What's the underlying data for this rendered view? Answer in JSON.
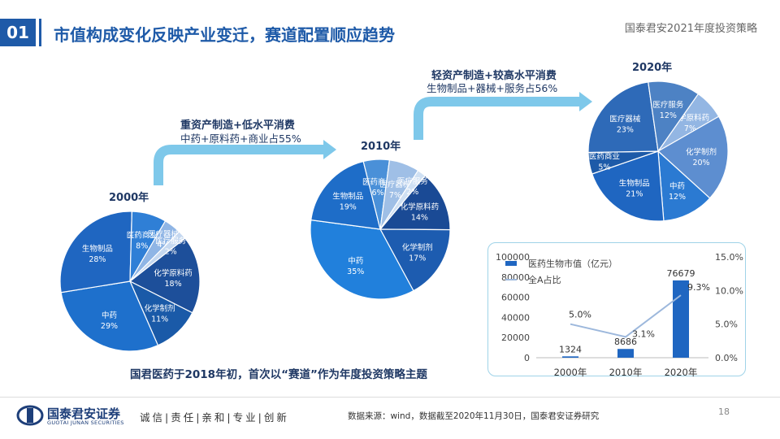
{
  "header": {
    "section_number": "01",
    "title": "市值构成变化反映产业变迁，赛道配置顺应趋势",
    "report_name": "国泰君安2021年度投资策略"
  },
  "annotations": {
    "a1_title": "重资产制造+低水平消费",
    "a1_sub": "中药+原料药+商业占55%",
    "a2_title": "轻资产制造+较高水平消费",
    "a2_sub": "生物制品+器械+服务占56%",
    "highlight": "国君医药于2018年初，首次以“赛道”作为年度投资策略主题"
  },
  "footer": {
    "company": "国泰君安证券",
    "company_en": "GUOTAI JUNAN SECURITIES",
    "values": "诚信|责任|亲和|专业|创新",
    "source": "数据来源：wind，数据截至2020年11月30日，国泰君安证券研究",
    "page": "18"
  },
  "colors": {
    "dark_blue": "#1e4f95",
    "mid_blue": "#1f66c1",
    "light_blue": "#2e85dc",
    "accent": "#1e5aa8"
  },
  "chart_data": [
    {
      "type": "pie",
      "title": "2000年",
      "slices": [
        {
          "name": "化学原料药",
          "value": 18
        },
        {
          "name": "化学制剂",
          "value": 11
        },
        {
          "name": "中药",
          "value": 29
        },
        {
          "name": "生物制品",
          "value": 28
        },
        {
          "name": "医药商业",
          "value": 8
        },
        {
          "name": "医疗器械",
          "value": 4
        },
        {
          "name": "医疗服务",
          "value": 2
        }
      ]
    },
    {
      "type": "pie",
      "title": "2010年",
      "slices": [
        {
          "name": "化学原料药",
          "value": 14
        },
        {
          "name": "化学制剂",
          "value": 17
        },
        {
          "name": "中药",
          "value": 35
        },
        {
          "name": "生物制品",
          "value": 19
        },
        {
          "name": "医药商业",
          "value": 6
        },
        {
          "name": "医疗器械",
          "value": 7
        },
        {
          "name": "医疗服务",
          "value": 2
        }
      ]
    },
    {
      "type": "pie",
      "title": "2020年",
      "slices": [
        {
          "name": "化学原料药",
          "value": 7
        },
        {
          "name": "化学制剂",
          "value": 20
        },
        {
          "name": "中药",
          "value": 12
        },
        {
          "name": "生物制品",
          "value": 21
        },
        {
          "name": "医药商业",
          "value": 5
        },
        {
          "name": "医疗器械",
          "value": 23
        },
        {
          "name": "医疗服务",
          "value": 12
        }
      ]
    },
    {
      "type": "bar",
      "categories": [
        "2000年",
        "2010年",
        "2020年"
      ],
      "series": [
        {
          "name": "医药生物市值（亿元）",
          "type": "bar",
          "axis": "left",
          "values": [
            1324,
            8686,
            76679
          ]
        },
        {
          "name": "全A占比",
          "type": "line",
          "axis": "right",
          "values": [
            5.0,
            3.1,
            9.3
          ]
        }
      ],
      "bar_labels": [
        "1324",
        "8686",
        "76679"
      ],
      "line_labels": [
        "5.0%",
        "3.1%",
        "9.3%"
      ],
      "ylim_left": [
        0,
        100000
      ],
      "yticks_left": [
        "0",
        "20000",
        "40000",
        "60000",
        "80000",
        "100000"
      ],
      "ylim_right": [
        0,
        15
      ],
      "yticks_right": [
        "0.0%",
        "5.0%",
        "10.0%",
        "15.0%"
      ],
      "legend": "top-left"
    }
  ]
}
